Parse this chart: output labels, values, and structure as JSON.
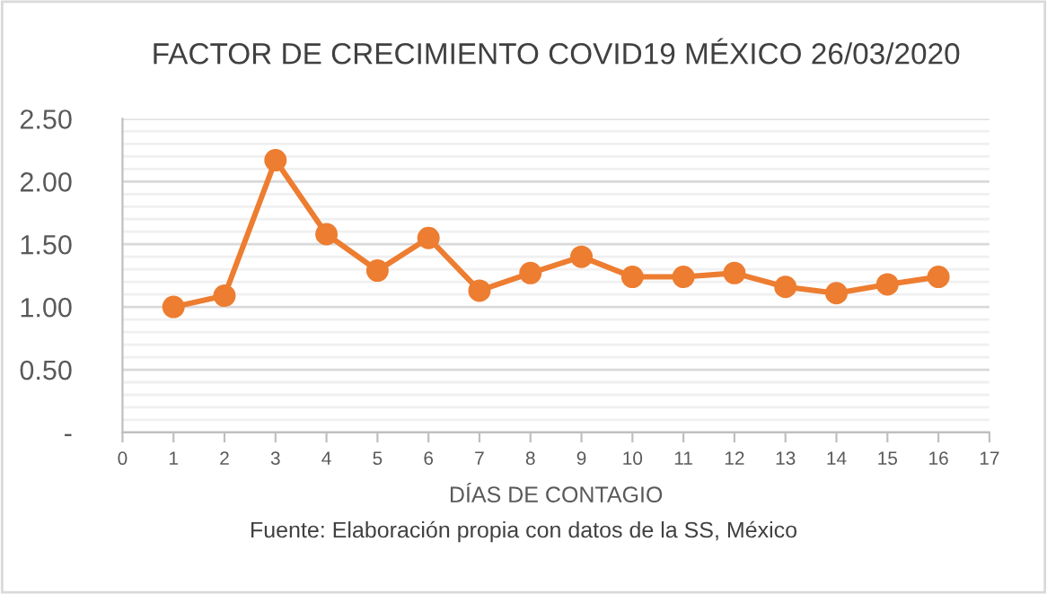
{
  "chart_data": {
    "type": "line",
    "title": "FACTOR DE CRECIMIENTO COVID19 MÉXICO 26/03/2020",
    "xlabel": "DÍAS DE CONTAGIO",
    "annotations": [
      "Fuente: Elaboración propia con datos de la SS, México"
    ],
    "x": [
      1,
      2,
      3,
      4,
      5,
      6,
      7,
      8,
      9,
      10,
      11,
      12,
      13,
      14,
      15,
      16
    ],
    "series": [
      {
        "color": "#ed7d31",
        "values": [
          1.0,
          1.09,
          2.17,
          1.58,
          1.29,
          1.55,
          1.13,
          1.27,
          1.4,
          1.24,
          1.24,
          1.27,
          1.16,
          1.11,
          1.18,
          1.24
        ]
      }
    ],
    "xlim": [
      0,
      17
    ],
    "xticks": [
      0,
      1,
      2,
      3,
      4,
      5,
      6,
      7,
      8,
      9,
      10,
      11,
      12,
      13,
      14,
      15,
      16,
      17
    ],
    "ylim": [
      0,
      2.5
    ],
    "yticks": [
      {
        "value": 0,
        "label": "-"
      },
      {
        "value": 0.1,
        "label": null
      },
      {
        "value": 0.2,
        "label": null
      },
      {
        "value": 0.3,
        "label": null
      },
      {
        "value": 0.4,
        "label": null
      },
      {
        "value": 0.5,
        "label": "0.50"
      },
      {
        "value": 0.6,
        "label": null
      },
      {
        "value": 0.7,
        "label": null
      },
      {
        "value": 0.8,
        "label": null
      },
      {
        "value": 0.9,
        "label": null
      },
      {
        "value": 1.0,
        "label": "1.00"
      },
      {
        "value": 1.1,
        "label": null
      },
      {
        "value": 1.2,
        "label": null
      },
      {
        "value": 1.3,
        "label": null
      },
      {
        "value": 1.4,
        "label": null
      },
      {
        "value": 1.5,
        "label": "1.50"
      },
      {
        "value": 1.6,
        "label": null
      },
      {
        "value": 1.7,
        "label": null
      },
      {
        "value": 1.8,
        "label": null
      },
      {
        "value": 1.9,
        "label": null
      },
      {
        "value": 2.0,
        "label": "2.00"
      },
      {
        "value": 2.1,
        "label": null
      },
      {
        "value": 2.2,
        "label": null
      },
      {
        "value": 2.3,
        "label": null
      },
      {
        "value": 2.4,
        "label": null
      },
      {
        "value": 2.5,
        "label": "2.50"
      }
    ],
    "grid": "y",
    "marker": "circle",
    "line_style": "solid",
    "legend": false
  }
}
